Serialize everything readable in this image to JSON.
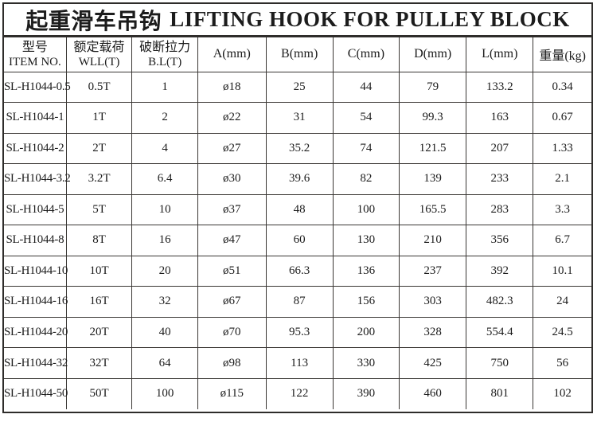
{
  "title": {
    "zh": "起重滑车吊钩",
    "en": "LIFTING HOOK FOR PULLEY BLOCK"
  },
  "colors": {
    "border": "#2e2c2a",
    "text": "#1c1c1c",
    "background": "#ffffff"
  },
  "table": {
    "headers": [
      {
        "lines": [
          "型号",
          "ITEM NO."
        ]
      },
      {
        "lines": [
          "额定载荷",
          "WLL(T)"
        ]
      },
      {
        "lines": [
          "破断拉力",
          "B.L(T)"
        ]
      },
      {
        "lines": [
          "A(mm)"
        ]
      },
      {
        "lines": [
          "B(mm)"
        ]
      },
      {
        "lines": [
          "C(mm)"
        ]
      },
      {
        "lines": [
          "D(mm)"
        ]
      },
      {
        "lines": [
          "L(mm)"
        ]
      },
      {
        "lines": [
          "重量(kg)"
        ]
      }
    ],
    "rows": [
      [
        "SL-H1044-0.5",
        "0.5T",
        "1",
        "ø18",
        "25",
        "44",
        "79",
        "133.2",
        "0.34"
      ],
      [
        "SL-H1044-1",
        "1T",
        "2",
        "ø22",
        "31",
        "54",
        "99.3",
        "163",
        "0.67"
      ],
      [
        "SL-H1044-2",
        "2T",
        "4",
        "ø27",
        "35.2",
        "74",
        "121.5",
        "207",
        "1.33"
      ],
      [
        "SL-H1044-3.2",
        "3.2T",
        "6.4",
        "ø30",
        "39.6",
        "82",
        "139",
        "233",
        "2.1"
      ],
      [
        "SL-H1044-5",
        "5T",
        "10",
        "ø37",
        "48",
        "100",
        "165.5",
        "283",
        "3.3"
      ],
      [
        "SL-H1044-8",
        "8T",
        "16",
        "ø47",
        "60",
        "130",
        "210",
        "356",
        "6.7"
      ],
      [
        "SL-H1044-10",
        "10T",
        "20",
        "ø51",
        "66.3",
        "136",
        "237",
        "392",
        "10.1"
      ],
      [
        "SL-H1044-16",
        "16T",
        "32",
        "ø67",
        "87",
        "156",
        "303",
        "482.3",
        "24"
      ],
      [
        "SL-H1044-20",
        "20T",
        "40",
        "ø70",
        "95.3",
        "200",
        "328",
        "554.4",
        "24.5"
      ],
      [
        "SL-H1044-32",
        "32T",
        "64",
        "ø98",
        "113",
        "330",
        "425",
        "750",
        "56"
      ],
      [
        "SL-H1044-50",
        "50T",
        "100",
        "ø115",
        "122",
        "390",
        "460",
        "801",
        "102"
      ]
    ]
  }
}
